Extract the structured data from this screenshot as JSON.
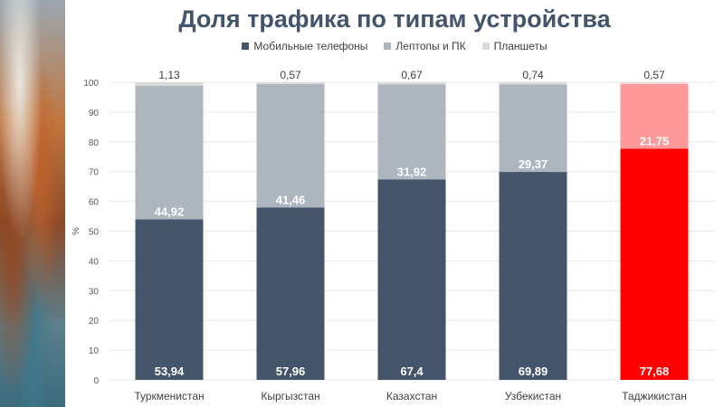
{
  "title": "Доля трафика по типам устройства",
  "chart_data": {
    "type": "bar",
    "stacked": true,
    "categories": [
      "Туркменистан",
      "Кыргызстан",
      "Казахстан",
      "Узбекистан",
      "Таджикистан"
    ],
    "series": [
      {
        "name": "Мобильные телефоны",
        "values": [
          53.94,
          57.96,
          67.4,
          69.89,
          77.68
        ],
        "labels": [
          "53,94",
          "57,96",
          "67,4",
          "69,89",
          "77,68"
        ],
        "color": "#44546a"
      },
      {
        "name": "Лептопы и ПК",
        "values": [
          44.92,
          41.46,
          31.92,
          29.37,
          21.75
        ],
        "labels": [
          "44,92",
          "41,46",
          "31,92",
          "29,37",
          "21,75"
        ],
        "color": "#adb5bf"
      },
      {
        "name": "Планшеты",
        "values": [
          1.13,
          0.57,
          0.67,
          0.74,
          0.57
        ],
        "labels": [
          "1,13",
          "0,57",
          "0,67",
          "0,74",
          "0,57"
        ],
        "color": "#d9d9d9"
      }
    ],
    "highlight": {
      "category_index": 4,
      "colors": [
        "#ff0000",
        "#ff9999",
        "#ffd6d6"
      ]
    },
    "ylabel": "%",
    "ylim": [
      0,
      100
    ],
    "yticks": [
      0,
      10,
      20,
      30,
      40,
      50,
      60,
      70,
      80,
      90,
      100
    ],
    "grid": true,
    "legend_position": "top"
  }
}
